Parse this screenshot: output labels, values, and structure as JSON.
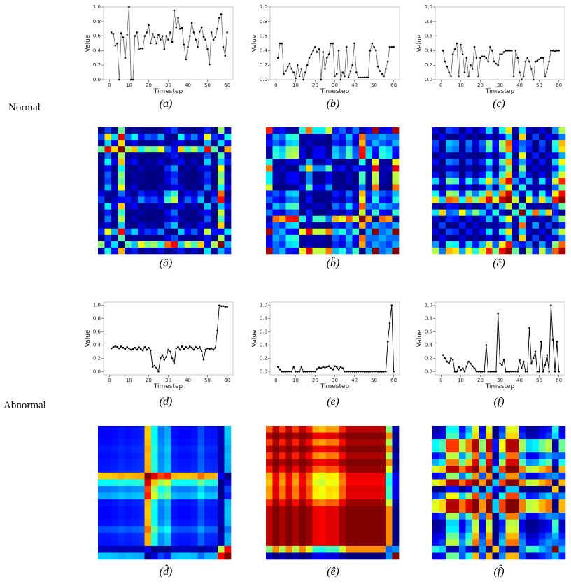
{
  "row_labels": [
    "Normal",
    "Abnormal"
  ],
  "chart_data": [
    {
      "type": "line",
      "caption": "(a)",
      "gaf_caption": "(â)",
      "xlabel": "Timestep",
      "ylabel": "Value",
      "color": "#777777",
      "marker_color": "#000000",
      "xlim": [
        -3,
        63
      ],
      "ylim": [
        0,
        1
      ],
      "xticks": [
        0,
        10,
        20,
        30,
        40,
        50,
        60
      ],
      "yticks": [
        {
          "value": 0,
          "label": "0.0"
        },
        {
          "value": 0.2,
          "label": "0.2"
        },
        {
          "value": 0.4,
          "label": "0.4"
        },
        {
          "value": 0.6,
          "label": "0.6"
        },
        {
          "value": 0.8,
          "label": "0.8"
        },
        {
          "value": 1,
          "label": "1.0"
        }
      ],
      "x": [
        1,
        2,
        3,
        4,
        5,
        6,
        7,
        8,
        9,
        10,
        11,
        12,
        13,
        14,
        15,
        16,
        17,
        18,
        19,
        20,
        21,
        22,
        23,
        24,
        25,
        26,
        27,
        28,
        29,
        30,
        31,
        32,
        33,
        34,
        35,
        36,
        37,
        38,
        39,
        40,
        41,
        42,
        43,
        44,
        45,
        46,
        47,
        48,
        49,
        50,
        51,
        52,
        53,
        54,
        55,
        56,
        57,
        58,
        59,
        60
      ],
      "values": [
        0.65,
        0.63,
        0.47,
        0.5,
        0.0,
        0.64,
        0.58,
        0.3,
        0.62,
        1.0,
        0.0,
        0.0,
        0.6,
        0.65,
        0.42,
        0.43,
        0.43,
        0.6,
        0.65,
        0.75,
        0.5,
        0.63,
        0.58,
        0.5,
        0.62,
        0.55,
        0.6,
        0.42,
        0.6,
        0.55,
        0.65,
        0.52,
        0.95,
        0.72,
        0.85,
        0.7,
        0.71,
        0.48,
        0.28,
        0.45,
        0.6,
        0.78,
        0.65,
        0.55,
        0.45,
        0.66,
        0.72,
        0.59,
        0.55,
        0.42,
        0.21,
        0.65,
        0.55,
        0.58,
        0.7,
        0.85,
        0.9,
        0.45,
        0.33,
        0.65
      ]
    },
    {
      "type": "line",
      "caption": "(b)",
      "gaf_caption": "(b̂)",
      "xlabel": "Timestep",
      "ylabel": "Value",
      "color": "#777777",
      "marker_color": "#000000",
      "xlim": [
        -3,
        63
      ],
      "ylim": [
        0,
        1
      ],
      "xticks": [
        0,
        10,
        20,
        30,
        40,
        50,
        60
      ],
      "yticks": [
        {
          "value": 0,
          "label": "0.0"
        },
        {
          "value": 0.2,
          "label": "0.2"
        },
        {
          "value": 0.4,
          "label": "0.4"
        },
        {
          "value": 0.6,
          "label": "0.6"
        },
        {
          "value": 0.8,
          "label": "0.8"
        },
        {
          "value": 1,
          "label": "1.0"
        }
      ],
      "x": [
        1,
        2,
        3,
        4,
        5,
        6,
        7,
        8,
        9,
        10,
        11,
        12,
        13,
        14,
        15,
        16,
        17,
        18,
        19,
        20,
        21,
        22,
        23,
        24,
        25,
        26,
        27,
        28,
        29,
        30,
        31,
        32,
        33,
        34,
        35,
        36,
        37,
        38,
        39,
        40,
        41,
        42,
        43,
        44,
        45,
        46,
        47,
        48,
        49,
        50,
        51,
        52,
        53,
        54,
        55,
        56,
        57,
        58,
        59,
        60
      ],
      "values": [
        0.3,
        0.5,
        0.5,
        0.08,
        0.12,
        0.18,
        0.22,
        0.15,
        0.1,
        0.02,
        0.2,
        0.05,
        0.15,
        0.0,
        0.1,
        0.2,
        0.3,
        0.35,
        0.4,
        0.45,
        0.38,
        0.42,
        0.0,
        0.38,
        0.15,
        0.3,
        0.35,
        0.5,
        0.5,
        0.05,
        0.08,
        0.4,
        0.0,
        0.1,
        0.05,
        0.45,
        0.03,
        0.12,
        0.2,
        0.5,
        0.1,
        0.03,
        0.03,
        0.03,
        0.03,
        0.03,
        0.03,
        0.4,
        0.5,
        0.45,
        0.4,
        0.18,
        0.12,
        0.08,
        0.05,
        0.15,
        0.25,
        0.45,
        0.45,
        0.45
      ]
    },
    {
      "type": "line",
      "caption": "(c)",
      "gaf_caption": "(ĉ)",
      "xlabel": "Timestep",
      "ylabel": "Value",
      "color": "#777777",
      "marker_color": "#000000",
      "xlim": [
        -3,
        63
      ],
      "ylim": [
        0,
        1
      ],
      "xticks": [
        0,
        10,
        20,
        30,
        40,
        50,
        60
      ],
      "yticks": [
        {
          "value": 0,
          "label": "0.0"
        },
        {
          "value": 0.2,
          "label": "0.2"
        },
        {
          "value": 0.4,
          "label": "0.4"
        },
        {
          "value": 0.6,
          "label": "0.6"
        },
        {
          "value": 0.8,
          "label": "0.8"
        },
        {
          "value": 1,
          "label": "1.0"
        }
      ],
      "x": [
        1,
        2,
        3,
        4,
        5,
        6,
        7,
        8,
        9,
        10,
        11,
        12,
        13,
        14,
        15,
        16,
        17,
        18,
        19,
        20,
        21,
        22,
        23,
        24,
        25,
        26,
        27,
        28,
        29,
        30,
        31,
        32,
        33,
        34,
        35,
        36,
        37,
        38,
        39,
        40,
        41,
        42,
        43,
        44,
        45,
        46,
        47,
        48,
        49,
        50,
        51,
        52,
        53,
        54,
        55,
        56,
        57,
        58,
        59,
        60
      ],
      "values": [
        0.4,
        0.25,
        0.18,
        0.1,
        0.05,
        0.35,
        0.42,
        0.5,
        0.05,
        0.48,
        0.35,
        0.1,
        0.3,
        0.05,
        0.2,
        0.15,
        0.45,
        0.3,
        0.05,
        0.3,
        0.32,
        0.32,
        0.3,
        0.25,
        0.45,
        0.4,
        0.25,
        0.22,
        0.2,
        0.35,
        0.35,
        0.38,
        0.4,
        0.4,
        0.4,
        0.4,
        0.05,
        0.4,
        0.3,
        0.1,
        0.0,
        0.05,
        0.25,
        0.3,
        0.25,
        0.15,
        0.0,
        0.25,
        0.26,
        0.28,
        0.3,
        0.3,
        0.05,
        0.15,
        0.25,
        0.4,
        0.4,
        0.39,
        0.4,
        0.4
      ]
    },
    {
      "type": "line",
      "caption": "(d)",
      "gaf_caption": "(d̂)",
      "xlabel": "Timestep",
      "ylabel": "Value",
      "color": "#000000",
      "marker_color": "#000000",
      "xlim": [
        -3,
        63
      ],
      "ylim": [
        -0.05,
        1.05
      ],
      "xticks": [
        0,
        10,
        20,
        30,
        40,
        50,
        60
      ],
      "yticks": [
        {
          "value": 0,
          "label": "0.0"
        },
        {
          "value": 0.2,
          "label": "0.2"
        },
        {
          "value": 0.4,
          "label": "0.4"
        },
        {
          "value": 0.6,
          "label": "0.6"
        },
        {
          "value": 0.8,
          "label": "0.8"
        },
        {
          "value": 1,
          "label": "1.0"
        }
      ],
      "x": [
        1,
        2,
        3,
        4,
        5,
        6,
        7,
        8,
        9,
        10,
        11,
        12,
        13,
        14,
        15,
        16,
        17,
        18,
        19,
        20,
        21,
        22,
        23,
        24,
        25,
        26,
        27,
        28,
        29,
        30,
        31,
        32,
        33,
        34,
        35,
        36,
        37,
        38,
        39,
        40,
        41,
        42,
        43,
        44,
        45,
        46,
        47,
        48,
        49,
        50,
        51,
        52,
        53,
        54,
        55,
        56,
        57,
        58,
        59,
        60
      ],
      "values": [
        0.35,
        0.37,
        0.38,
        0.37,
        0.35,
        0.38,
        0.36,
        0.34,
        0.37,
        0.35,
        0.33,
        0.34,
        0.36,
        0.33,
        0.37,
        0.34,
        0.32,
        0.37,
        0.33,
        0.36,
        0.32,
        0.07,
        0.09,
        0.05,
        0.0,
        0.2,
        0.25,
        0.18,
        0.22,
        0.33,
        0.3,
        0.2,
        0.12,
        0.35,
        0.37,
        0.33,
        0.38,
        0.34,
        0.37,
        0.35,
        0.38,
        0.36,
        0.33,
        0.37,
        0.35,
        0.37,
        0.3,
        0.18,
        0.33,
        0.35,
        0.34,
        0.35,
        0.33,
        0.36,
        0.62,
        1.0,
        0.99,
        0.99,
        0.98,
        0.98
      ]
    },
    {
      "type": "line",
      "caption": "(e)",
      "gaf_caption": "(ê)",
      "xlabel": "Timestep",
      "ylabel": "Value",
      "color": "#000000",
      "marker_color": "#000000",
      "xlim": [
        -3,
        63
      ],
      "ylim": [
        -0.05,
        1.05
      ],
      "xticks": [
        0,
        10,
        20,
        30,
        40,
        50,
        60
      ],
      "yticks": [
        {
          "value": 0,
          "label": "0.0"
        },
        {
          "value": 0.2,
          "label": "0.2"
        },
        {
          "value": 0.4,
          "label": "0.4"
        },
        {
          "value": 0.6,
          "label": "0.6"
        },
        {
          "value": 0.8,
          "label": "0.8"
        },
        {
          "value": 1,
          "label": "1.0"
        }
      ],
      "x": [
        1,
        2,
        3,
        4,
        5,
        6,
        7,
        8,
        9,
        10,
        11,
        12,
        13,
        14,
        15,
        16,
        17,
        18,
        19,
        20,
        21,
        22,
        23,
        24,
        25,
        26,
        27,
        28,
        29,
        30,
        31,
        32,
        33,
        34,
        35,
        36,
        37,
        38,
        39,
        40,
        41,
        42,
        43,
        44,
        45,
        46,
        47,
        48,
        49,
        50,
        51,
        52,
        53,
        54,
        55,
        56,
        57,
        58,
        59,
        60
      ],
      "values": [
        0.07,
        0.03,
        0.0,
        0.0,
        0.0,
        0.0,
        0.0,
        0.0,
        0.07,
        0.0,
        0.0,
        0.0,
        0.07,
        0.0,
        0.0,
        0.0,
        0.0,
        0.0,
        0.0,
        0.0,
        0.04,
        0.06,
        0.05,
        0.07,
        0.06,
        0.07,
        0.08,
        0.05,
        0.03,
        0.08,
        0.07,
        0.03,
        0.07,
        0.05,
        0.0,
        0.0,
        0.0,
        0.0,
        0.0,
        0.0,
        0.0,
        0.0,
        0.0,
        0.0,
        0.0,
        0.0,
        0.0,
        0.0,
        0.0,
        0.0,
        0.0,
        0.0,
        0.0,
        0.0,
        0.0,
        0.0,
        0.45,
        0.73,
        1.0,
        0.0
      ]
    },
    {
      "type": "line",
      "caption": "(f)",
      "gaf_caption": "(f̂)",
      "xlabel": "Timestep",
      "ylabel": "Value",
      "color": "#000000",
      "marker_color": "#000000",
      "xlim": [
        -3,
        63
      ],
      "ylim": [
        -0.05,
        1.05
      ],
      "xticks": [
        0,
        10,
        20,
        30,
        40,
        50,
        60
      ],
      "yticks": [
        {
          "value": 0,
          "label": "0.0"
        },
        {
          "value": 0.2,
          "label": "0.2"
        },
        {
          "value": 0.4,
          "label": "0.4"
        },
        {
          "value": 0.6,
          "label": "0.6"
        },
        {
          "value": 0.8,
          "label": "0.8"
        },
        {
          "value": 1,
          "label": "1.0"
        }
      ],
      "x": [
        1,
        2,
        3,
        4,
        5,
        6,
        7,
        8,
        9,
        10,
        11,
        12,
        13,
        14,
        15,
        16,
        17,
        18,
        19,
        20,
        21,
        22,
        23,
        24,
        25,
        26,
        27,
        28,
        29,
        30,
        31,
        32,
        33,
        34,
        35,
        36,
        37,
        38,
        39,
        40,
        41,
        42,
        43,
        44,
        45,
        46,
        47,
        48,
        49,
        50,
        51,
        52,
        53,
        54,
        55,
        56,
        57,
        58,
        59,
        60
      ],
      "values": [
        0.25,
        0.2,
        0.15,
        0.12,
        0.2,
        0.18,
        0.0,
        0.0,
        0.07,
        0.02,
        0.05,
        0.0,
        0.08,
        0.15,
        0.12,
        0.08,
        0.05,
        0.0,
        0.0,
        0.0,
        0.0,
        0.0,
        0.4,
        0.0,
        0.0,
        0.0,
        0.0,
        0.0,
        0.88,
        0.12,
        0.1,
        0.18,
        0.0,
        0.0,
        0.0,
        0.0,
        0.0,
        0.0,
        0.0,
        0.17,
        0.05,
        0.15,
        0.0,
        0.0,
        0.66,
        0.12,
        0.2,
        0.3,
        0.0,
        0.0,
        0.45,
        0.0,
        0.1,
        0.25,
        0.0,
        1.0,
        0.48,
        0.0,
        0.45,
        0.0
      ]
    }
  ]
}
